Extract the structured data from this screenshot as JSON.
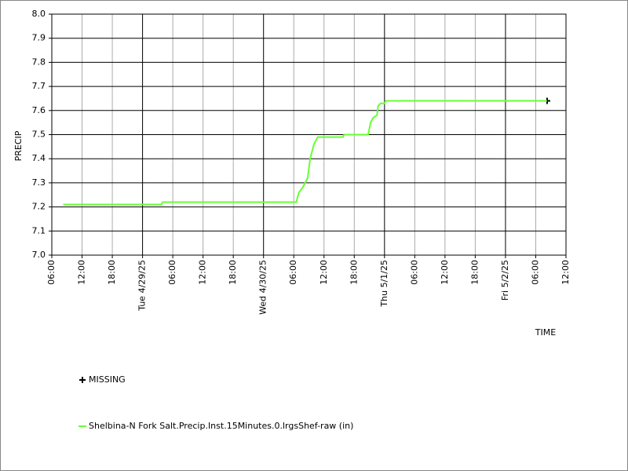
{
  "chart_data": {
    "type": "line",
    "y_label": "PRECIP",
    "x_label": "TIME",
    "xlim": [
      "2025-04-28T06:00",
      "2025-05-02T12:00"
    ],
    "xticks": [
      {
        "value": "2025-04-28T06:00",
        "label": "06:00"
      },
      {
        "value": "2025-04-28T12:00",
        "label": "12:00"
      },
      {
        "value": "2025-04-28T18:00",
        "label": "18:00"
      },
      {
        "value": "2025-04-29T00:00",
        "label": "Tue 4/29/25"
      },
      {
        "value": "2025-04-29T06:00",
        "label": "06:00"
      },
      {
        "value": "2025-04-29T12:00",
        "label": "12:00"
      },
      {
        "value": "2025-04-29T18:00",
        "label": "18:00"
      },
      {
        "value": "2025-04-30T00:00",
        "label": "Wed 4/30/25"
      },
      {
        "value": "2025-04-30T06:00",
        "label": "06:00"
      },
      {
        "value": "2025-04-30T12:00",
        "label": "12:00"
      },
      {
        "value": "2025-04-30T18:00",
        "label": "18:00"
      },
      {
        "value": "2025-05-01T00:00",
        "label": "Thu 5/1/25"
      },
      {
        "value": "2025-05-01T06:00",
        "label": "06:00"
      },
      {
        "value": "2025-05-01T12:00",
        "label": "12:00"
      },
      {
        "value": "2025-05-01T18:00",
        "label": "18:00"
      },
      {
        "value": "2025-05-02T00:00",
        "label": "Fri 5/2/25"
      },
      {
        "value": "2025-05-02T06:00",
        "label": "06:00"
      },
      {
        "value": "2025-05-02T12:00",
        "label": "12:00"
      }
    ],
    "ylim": [
      7.0,
      8.0
    ],
    "yticks": [
      {
        "value": 7.0,
        "label": "7.0"
      },
      7.1,
      7.2,
      7.3,
      7.4,
      7.5,
      7.6,
      7.7,
      7.8,
      7.9,
      {
        "value": 8.0,
        "label": "8.0"
      }
    ],
    "grid": true,
    "series": [
      {
        "name": "MISSING",
        "color": "#000000",
        "marker": "plus",
        "x": [
          "2025-05-02T08:15"
        ],
        "values": [
          7.64
        ]
      },
      {
        "name": "Shelbina-N Fork Salt.Precip.Inst.15Minutes.0.lrgsShef-raw (in)",
        "color": "#66ff33",
        "x": [
          "2025-04-28T08:15",
          "2025-04-29T03:45",
          "2025-04-29T04:00",
          "2025-04-30T06:30",
          "2025-04-30T07:00",
          "2025-04-30T07:45",
          "2025-04-30T08:15",
          "2025-04-30T08:45",
          "2025-04-30T09:15",
          "2025-04-30T10:00",
          "2025-04-30T10:45",
          "2025-04-30T15:45",
          "2025-04-30T16:00",
          "2025-04-30T20:45",
          "2025-04-30T21:15",
          "2025-04-30T21:45",
          "2025-04-30T22:30",
          "2025-04-30T22:45",
          "2025-04-30T23:15",
          "2025-05-01T00:00",
          "2025-05-01T00:15",
          "2025-05-02T08:15"
        ],
        "values": [
          7.21,
          7.21,
          7.22,
          7.22,
          7.26,
          7.28,
          7.3,
          7.32,
          7.4,
          7.46,
          7.49,
          7.49,
          7.5,
          7.5,
          7.55,
          7.57,
          7.58,
          7.62,
          7.63,
          7.63,
          7.64,
          7.64
        ]
      }
    ]
  }
}
